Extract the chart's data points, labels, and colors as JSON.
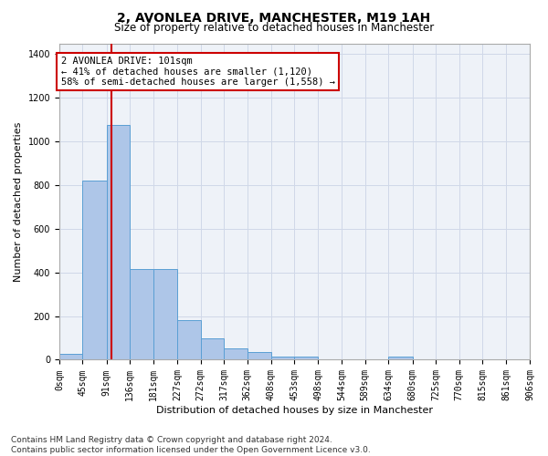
{
  "title1": "2, AVONLEA DRIVE, MANCHESTER, M19 1AH",
  "title2": "Size of property relative to detached houses in Manchester",
  "xlabel": "Distribution of detached houses by size in Manchester",
  "ylabel": "Number of detached properties",
  "bar_values": [
    25,
    820,
    1075,
    415,
    415,
    182,
    100,
    52,
    35,
    15,
    15,
    0,
    0,
    0,
    15,
    0,
    0,
    0,
    0,
    0
  ],
  "bar_edges": [
    0,
    45,
    91,
    136,
    181,
    227,
    272,
    317,
    362,
    408,
    453,
    498,
    544,
    589,
    634,
    680,
    725,
    770,
    815,
    861,
    906
  ],
  "bar_color": "#aec6e8",
  "bar_edgecolor": "#5a9fd4",
  "grid_color": "#d0d8e8",
  "bg_color": "#eef2f8",
  "vline_x": 101,
  "vline_color": "#cc0000",
  "annotation_line1": "2 AVONLEA DRIVE: 101sqm",
  "annotation_line2": "← 41% of detached houses are smaller (1,120)",
  "annotation_line3": "58% of semi-detached houses are larger (1,558) →",
  "annotation_box_color": "#cc0000",
  "ylim": [
    0,
    1450
  ],
  "yticks": [
    0,
    200,
    400,
    600,
    800,
    1000,
    1200,
    1400
  ],
  "xtick_labels": [
    "0sqm",
    "45sqm",
    "91sqm",
    "136sqm",
    "181sqm",
    "227sqm",
    "272sqm",
    "317sqm",
    "362sqm",
    "408sqm",
    "453sqm",
    "498sqm",
    "544sqm",
    "589sqm",
    "634sqm",
    "680sqm",
    "725sqm",
    "770sqm",
    "815sqm",
    "861sqm",
    "906sqm"
  ],
  "footnote": "Contains HM Land Registry data © Crown copyright and database right 2024.\nContains public sector information licensed under the Open Government Licence v3.0.",
  "title1_fontsize": 10,
  "title2_fontsize": 8.5,
  "xlabel_fontsize": 8,
  "ylabel_fontsize": 8,
  "annotation_fontsize": 7.5,
  "tick_fontsize": 7,
  "footnote_fontsize": 6.5
}
